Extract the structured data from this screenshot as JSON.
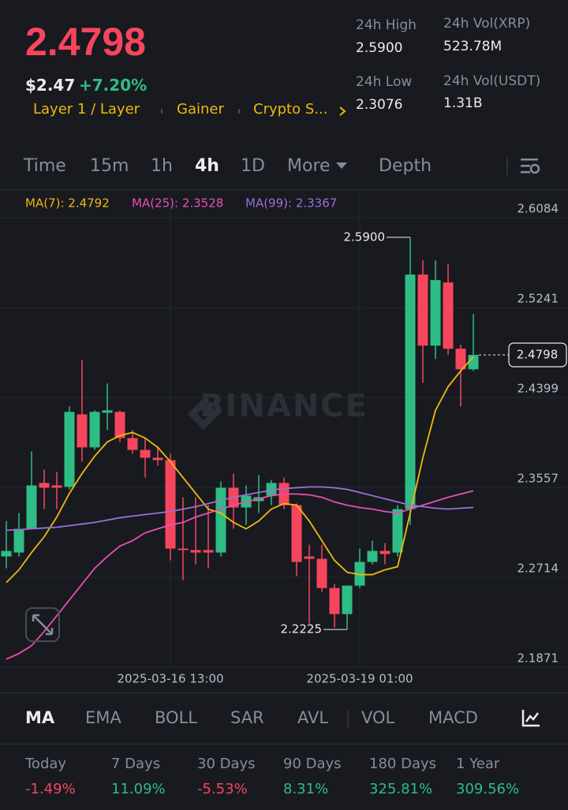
{
  "header": {
    "price": "2.4798",
    "usd_price": "$2.47",
    "change": "+7.20%",
    "tags": [
      "Layer 1 / Layer",
      "Gainer",
      "Crypto S..."
    ],
    "stats": [
      {
        "label": "24h High",
        "value": "2.5900"
      },
      {
        "label": "24h Vol(XRP)",
        "value": "523.78M"
      },
      {
        "label": "24h Low",
        "value": "2.3076"
      },
      {
        "label": "24h Vol(USDT)",
        "value": "1.31B"
      }
    ]
  },
  "tabs": [
    "Time",
    "15m",
    "1h",
    "4h",
    "1D",
    "More",
    "Depth"
  ],
  "active_tab": "4h",
  "chart_data": {
    "type": "candlestick",
    "watermark": "BINANCE",
    "categories": [
      null,
      null,
      null,
      null,
      null,
      null,
      null,
      null,
      null,
      null,
      null,
      null,
      null,
      "2025-03-16 13:00",
      null,
      null,
      null,
      null,
      null,
      null,
      null,
      null,
      null,
      null,
      null,
      null,
      null,
      null,
      "2025-03-19 01:00",
      null,
      null,
      null,
      null,
      null,
      null,
      null,
      null,
      null
    ],
    "open": [
      2.2909,
      2.2946,
      2.3168,
      2.3598,
      2.3575,
      2.3561,
      2.4241,
      2.3931,
      2.4256,
      2.4264,
      2.4019,
      2.3908,
      2.3834,
      2.3812,
      2.2983,
      2.2969,
      2.2969,
      2.2946,
      2.3553,
      2.3368,
      2.3427,
      2.3479,
      2.3598,
      2.339,
      2.2909,
      2.2887,
      2.2613,
      2.2369,
      2.2636,
      2.2858,
      2.2961,
      2.2946,
      2.3353,
      2.5551,
      2.4885,
      2.5477,
      2.4856,
      2.4663
    ],
    "high": [
      2.3242,
      2.3316,
      2.3894,
      2.3723,
      2.3701,
      2.4315,
      2.4752,
      2.4278,
      2.453,
      2.4278,
      2.4093,
      2.4019,
      2.3945,
      2.3871,
      2.3464,
      2.3464,
      2.339,
      2.3612,
      2.3686,
      2.3575,
      2.3672,
      2.3627,
      2.3649,
      2.3405,
      2.302,
      2.302,
      2.265,
      2.2636,
      2.2983,
      2.3057,
      2.3035,
      2.339,
      2.59,
      2.5684,
      2.5684,
      2.5647,
      2.4893,
      2.5181
    ],
    "low": [
      2.2798,
      2.2909,
      2.3168,
      2.3353,
      2.3353,
      2.3538,
      2.3797,
      2.3908,
      2.4093,
      2.3982,
      2.3871,
      2.3649,
      2.376,
      2.2872,
      2.2687,
      2.2835,
      2.2798,
      2.2909,
      2.3168,
      2.3205,
      2.3316,
      2.339,
      2.3353,
      2.2724,
      2.228,
      2.2576,
      2.2243,
      2.2225,
      2.2613,
      2.2835,
      2.2835,
      2.2909,
      2.3205,
      2.4537,
      2.4759,
      2.4796,
      2.4315,
      2.4648
    ],
    "close": [
      2.2961,
      2.3168,
      2.3575,
      2.3553,
      2.3553,
      2.4264,
      2.3931,
      2.4264,
      2.4278,
      2.4019,
      2.3908,
      2.3834,
      2.3812,
      2.2983,
      2.2969,
      2.2946,
      2.2946,
      2.3553,
      2.3368,
      2.3479,
      2.3464,
      2.3598,
      2.339,
      2.2858,
      2.2887,
      2.2613,
      2.2369,
      2.2636,
      2.2858,
      2.2961,
      2.2932,
      2.3353,
      2.5551,
      2.4885,
      2.5499,
      2.4856,
      2.4663,
      2.4798
    ],
    "up_color": "#2ebd85",
    "down_color": "#f6465d",
    "series": [
      {
        "name": "MA(7): 2.4792",
        "color": "#f0b90b",
        "values": [
          2.2665,
          2.2784,
          2.2946,
          2.3094,
          2.3279,
          2.3501,
          2.3686,
          2.3849,
          2.3982,
          2.4042,
          2.4071,
          2.4019,
          2.3931,
          2.3797,
          2.3649,
          2.3501,
          2.3353,
          2.3316,
          2.3228,
          2.3168,
          2.3242,
          2.3353,
          2.3405,
          2.339,
          2.3242,
          2.3057,
          2.2872,
          2.2761,
          2.2739,
          2.2739,
          2.2784,
          2.2813,
          2.3316,
          2.3834,
          2.4278,
          2.45,
          2.4648,
          2.4782
        ]
      },
      {
        "name": "MA(25): 2.3528",
        "color": "#e84fb5",
        "values": [
          2.1947,
          2.1999,
          2.2073,
          2.2206,
          2.2354,
          2.2502,
          2.265,
          2.2798,
          2.2909,
          2.3006,
          2.3057,
          2.3131,
          2.3168,
          2.3205,
          2.3228,
          2.3279,
          2.3316,
          2.3353,
          2.339,
          2.342,
          2.345,
          2.3479,
          2.3494,
          2.3494,
          2.3487,
          2.3464,
          2.342,
          2.339,
          2.3368,
          2.3353,
          2.3331,
          2.3316,
          2.3353,
          2.339,
          2.3427,
          2.3464,
          2.3494,
          2.3524
        ]
      },
      {
        "name": "MA(99): 2.3367",
        "color": "#9b6fd6",
        "values": [
          2.3154,
          2.3161,
          2.3168,
          2.3176,
          2.3183,
          2.3198,
          2.3213,
          2.3228,
          2.325,
          2.3272,
          2.3287,
          2.3302,
          2.3316,
          2.3331,
          2.3353,
          2.3376,
          2.3405,
          2.3435,
          2.3464,
          2.3487,
          2.3509,
          2.3531,
          2.3546,
          2.3553,
          2.3561,
          2.3561,
          2.3553,
          2.3538,
          2.3509,
          2.3479,
          2.345,
          2.342,
          2.339,
          2.3376,
          2.3361,
          2.3353,
          2.3361,
          2.3368
        ]
      }
    ],
    "annotations": [
      {
        "value": 2.59,
        "label": "2.5900",
        "at": "high"
      },
      {
        "value": 2.2225,
        "label": "2.2225",
        "at": "low"
      }
    ],
    "current_price": {
      "value": 2.4798,
      "label": "2.4798"
    },
    "ylim": [
      2.1871,
      2.6313
    ],
    "yticks": [
      2.6084,
      2.5241,
      2.4399,
      2.3557,
      2.2714,
      2.1871
    ],
    "grid": true
  },
  "indicators": [
    "MA",
    "EMA",
    "BOLL",
    "SAR",
    "AVL",
    "VOL",
    "MACD"
  ],
  "active_indicator": "MA",
  "performance": [
    {
      "label": "Today",
      "value": "-1.49%",
      "color": "#f6465d"
    },
    {
      "label": "7 Days",
      "value": "11.09%",
      "color": "#2ebd85"
    },
    {
      "label": "30 Days",
      "value": "-5.53%",
      "color": "#f6465d"
    },
    {
      "label": "90 Days",
      "value": "8.31%",
      "color": "#2ebd85"
    },
    {
      "label": "180 Days",
      "value": "325.81%",
      "color": "#2ebd85"
    },
    {
      "label": "1 Year",
      "value": "309.56%",
      "color": "#2ebd85"
    }
  ]
}
